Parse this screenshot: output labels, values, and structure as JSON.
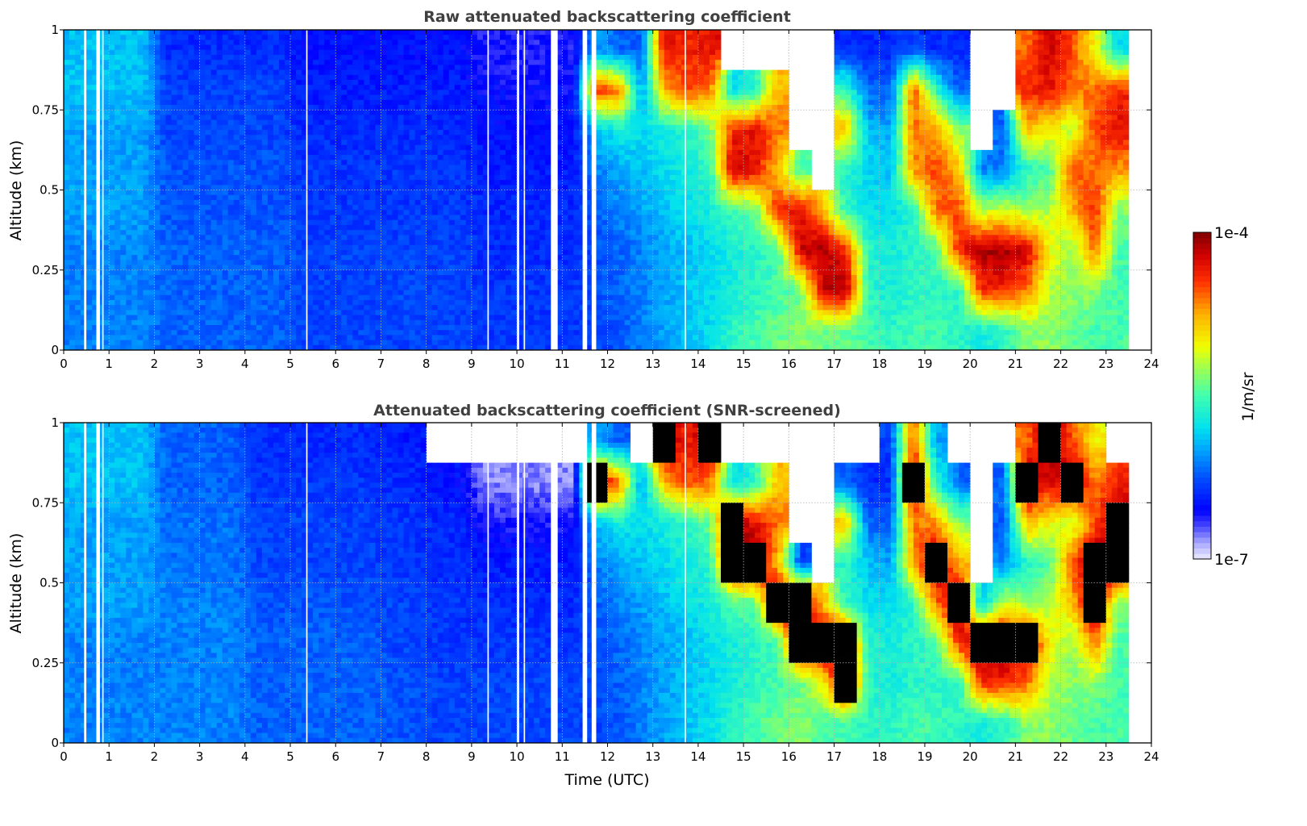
{
  "chart_data": [
    {
      "type": "heatmap",
      "title": "Raw attenuated backscattering coefficient",
      "xlabel": "",
      "ylabel": "Altitude (km)",
      "xlim": [
        0,
        24
      ],
      "ylim": [
        0,
        1
      ],
      "xticks": [
        "0",
        "1",
        "2",
        "3",
        "4",
        "5",
        "6",
        "7",
        "8",
        "9",
        "10",
        "11",
        "12",
        "13",
        "14",
        "15",
        "16",
        "17",
        "18",
        "19",
        "20",
        "21",
        "22",
        "23",
        "24"
      ],
      "yticks": [
        "0",
        "0.25",
        "0.5",
        "0.75",
        "1"
      ],
      "ytick_values": [
        0,
        0.25,
        0.5,
        0.75,
        1
      ],
      "grid": true,
      "time_step_hours": 0.5,
      "altitude_bins_km_top_to_bottom": [
        0.9375,
        0.8125,
        0.6875,
        0.5625,
        0.4375,
        0.3125,
        0.1875,
        0.0625
      ],
      "value_units": "log10(1/m/sr)",
      "z_columns_top_to_bottom": [
        [
          -5.9,
          -5.9,
          -6.0,
          -6.0,
          -6.0,
          -6.1,
          -6.1,
          -6.1
        ],
        [
          -5.9,
          -5.9,
          -6.0,
          -6.0,
          -6.0,
          -6.1,
          -6.1,
          -6.1
        ],
        [
          -5.9,
          -5.9,
          -6.0,
          -6.0,
          -6.0,
          -6.1,
          -6.1,
          -6.1
        ],
        [
          -5.9,
          -5.9,
          -6.0,
          -6.0,
          -6.0,
          -6.1,
          -6.1,
          -6.1
        ],
        [
          -6.4,
          -6.3,
          -6.3,
          -6.25,
          -6.25,
          -6.2,
          -6.2,
          -6.2
        ],
        [
          -6.4,
          -6.3,
          -6.3,
          -6.25,
          -6.25,
          -6.2,
          -6.2,
          -6.2
        ],
        [
          -6.4,
          -6.3,
          -6.3,
          -6.25,
          -6.25,
          -6.2,
          -6.2,
          -6.2
        ],
        [
          -6.4,
          -6.3,
          -6.3,
          -6.25,
          -6.25,
          -6.2,
          -6.2,
          -6.2
        ],
        [
          -6.4,
          -6.3,
          -6.3,
          -6.25,
          -6.25,
          -6.2,
          -6.2,
          -6.2
        ],
        [
          -6.4,
          -6.3,
          -6.3,
          -6.25,
          -6.25,
          -6.2,
          -6.2,
          -6.2
        ],
        [
          -6.5,
          -6.45,
          -6.4,
          -6.35,
          -6.35,
          -6.3,
          -6.3,
          -6.3
        ],
        [
          -6.5,
          -6.45,
          -6.4,
          -6.35,
          -6.35,
          -6.3,
          -6.3,
          -6.3
        ],
        [
          -6.5,
          -6.45,
          -6.4,
          -6.35,
          -6.35,
          -6.3,
          -6.3,
          -6.3
        ],
        [
          -6.5,
          -6.45,
          -6.4,
          -6.35,
          -6.35,
          -6.3,
          -6.3,
          -6.3
        ],
        [
          -6.5,
          -6.45,
          -6.4,
          -6.35,
          -6.35,
          -6.3,
          -6.3,
          -6.3
        ],
        [
          -6.5,
          -6.45,
          -6.4,
          -6.35,
          -6.35,
          -6.3,
          -6.3,
          -6.3
        ],
        [
          -6.5,
          -6.45,
          -6.4,
          -6.35,
          -6.35,
          -6.3,
          -6.3,
          -6.3
        ],
        [
          -6.5,
          -6.45,
          -6.4,
          -6.35,
          -6.35,
          -6.3,
          -6.3,
          -6.3
        ],
        [
          -6.6,
          -6.55,
          -6.5,
          -6.45,
          -6.4,
          -6.4,
          -6.35,
          -6.35
        ],
        [
          -6.6,
          -6.55,
          -6.5,
          -6.45,
          -6.4,
          -6.4,
          -6.35,
          -6.35
        ],
        [
          -6.6,
          -6.55,
          -6.5,
          -6.45,
          -6.4,
          -6.4,
          -6.35,
          -6.35
        ],
        [
          -6.6,
          -6.55,
          -6.5,
          -6.45,
          -6.4,
          -6.4,
          -6.35,
          -6.35
        ],
        [
          -6.6,
          -6.55,
          -6.5,
          -6.45,
          -6.4,
          -6.4,
          -6.35,
          -6.35
        ],
        [
          -6.0,
          -4.4,
          -5.9,
          -6.1,
          -6.2,
          -6.25,
          -6.25,
          -6.3
        ],
        [
          -6.2,
          -4.6,
          -5.7,
          -6.0,
          -6.1,
          -6.2,
          -6.2,
          -6.25
        ],
        [
          -6.2,
          -6.0,
          -5.8,
          -5.9,
          -6.0,
          -6.1,
          -6.1,
          -6.1
        ],
        [
          -4.3,
          -4.8,
          -5.7,
          -5.8,
          -5.9,
          -6.0,
          -6.0,
          -6.0
        ],
        [
          -4.4,
          -4.5,
          -5.6,
          -5.7,
          -5.8,
          -5.9,
          -5.9,
          -5.9
        ],
        [
          -4.3,
          -4.6,
          -5.4,
          -5.6,
          -5.7,
          -5.8,
          -5.8,
          -5.8
        ],
        [
          null,
          -5.8,
          -4.4,
          -4.2,
          -5.5,
          -5.7,
          -5.7,
          -5.6
        ],
        [
          null,
          -5.6,
          -4.3,
          -4.3,
          -5.4,
          -5.6,
          -5.6,
          -5.5
        ],
        [
          null,
          -4.8,
          -4.6,
          -4.8,
          -4.4,
          -5.5,
          -5.5,
          -5.4
        ],
        [
          null,
          null,
          null,
          -5.5,
          -4.3,
          -4.2,
          -5.4,
          -5.3
        ],
        [
          null,
          null,
          null,
          null,
          -4.8,
          -4.1,
          -4.2,
          -5.4
        ],
        [
          -6.4,
          -5.5,
          -4.8,
          -5.6,
          -5.6,
          -4.4,
          -4.1,
          -5.4
        ],
        [
          -6.4,
          -6.2,
          -5.9,
          -5.8,
          -5.8,
          -5.6,
          -5.6,
          -5.5
        ],
        [
          -6.4,
          -6.2,
          -6.0,
          -5.9,
          -5.8,
          -5.7,
          -5.7,
          -5.6
        ],
        [
          -6.3,
          -4.5,
          -4.6,
          -4.7,
          -5.6,
          -5.6,
          -5.6,
          -5.5
        ],
        [
          -6.4,
          -5.6,
          -4.7,
          -4.5,
          -4.6,
          -5.5,
          -5.6,
          -5.5
        ],
        [
          -6.4,
          -6.2,
          -5.3,
          -4.8,
          -4.5,
          -4.4,
          -5.6,
          -5.6
        ],
        [
          null,
          null,
          null,
          -6.1,
          -5.2,
          -4.1,
          -4.4,
          -5.7
        ],
        [
          null,
          null,
          -6.2,
          -6.1,
          -5.1,
          -4.1,
          -4.4,
          -5.6
        ],
        [
          -4.6,
          -4.4,
          -4.8,
          -5.6,
          -5.3,
          -4.2,
          -4.6,
          -5.3
        ],
        [
          -4.2,
          -4.3,
          -5.0,
          -5.5,
          -5.2,
          -5.0,
          -5.2,
          -5.3
        ],
        [
          -4.5,
          -4.6,
          -5.2,
          -4.5,
          -4.8,
          -5.3,
          -5.3,
          -5.4
        ],
        [
          -5.0,
          -4.6,
          -4.5,
          -4.6,
          -4.4,
          -4.6,
          -5.3,
          -5.5
        ],
        [
          -5.8,
          -4.4,
          -4.3,
          -4.7,
          -5.3,
          -5.5,
          -5.5,
          -5.5
        ],
        [
          null,
          null,
          null,
          null,
          null,
          null,
          null,
          null
        ]
      ],
      "missing_time_gaps_hours": [
        [
          0.45,
          0.5
        ],
        [
          0.72,
          0.8
        ],
        [
          0.85,
          0.88
        ],
        [
          5.35,
          5.38
        ],
        [
          9.35,
          9.38
        ],
        [
          10.0,
          10.05
        ],
        [
          10.15,
          10.18
        ],
        [
          10.75,
          10.9
        ],
        [
          11.45,
          11.55
        ],
        [
          11.65,
          11.75
        ],
        [
          13.7,
          13.73
        ]
      ]
    },
    {
      "type": "heatmap",
      "title": "Attenuated backscattering coefficient (SNR-screened)",
      "xlabel": "Time (UTC)",
      "ylabel": "Altitude (km)",
      "xlim": [
        0,
        24
      ],
      "ylim": [
        0,
        1
      ],
      "xticks": [
        "0",
        "1",
        "2",
        "3",
        "4",
        "5",
        "6",
        "7",
        "8",
        "9",
        "10",
        "11",
        "12",
        "13",
        "14",
        "15",
        "16",
        "17",
        "18",
        "19",
        "20",
        "21",
        "22",
        "23",
        "24"
      ],
      "yticks": [
        "0",
        "0.25",
        "0.5",
        "0.75",
        "1"
      ],
      "ytick_values": [
        0,
        0.25,
        0.5,
        0.75,
        1
      ],
      "grid": true,
      "time_step_hours": 0.5,
      "altitude_bins_km_top_to_bottom": [
        0.9375,
        0.8125,
        0.6875,
        0.5625,
        0.4375,
        0.3125,
        0.1875,
        0.0625
      ],
      "value_units": "log10(1/m/sr); values above -3.9 shown black (saturated)",
      "z_columns_top_to_bottom": [
        [
          -5.9,
          -5.9,
          -6.0,
          -6.0,
          -6.0,
          -6.1,
          -6.1,
          -6.1
        ],
        [
          -5.9,
          -5.9,
          -6.0,
          -6.0,
          -6.0,
          -6.1,
          -6.1,
          -6.1
        ],
        [
          -5.9,
          -5.9,
          -6.0,
          -6.0,
          -6.0,
          -6.1,
          -6.1,
          -6.1
        ],
        [
          -5.9,
          -5.9,
          -6.0,
          -6.0,
          -6.0,
          -6.1,
          -6.1,
          -6.1
        ],
        [
          -6.2,
          -6.2,
          -6.15,
          -6.15,
          -6.1,
          -6.1,
          -6.1,
          -6.1
        ],
        [
          -6.2,
          -6.2,
          -6.15,
          -6.15,
          -6.1,
          -6.1,
          -6.1,
          -6.1
        ],
        [
          -6.2,
          -6.2,
          -6.15,
          -6.15,
          -6.1,
          -6.1,
          -6.1,
          -6.1
        ],
        [
          -6.2,
          -6.2,
          -6.15,
          -6.15,
          -6.1,
          -6.1,
          -6.1,
          -6.1
        ],
        [
          -6.4,
          -6.35,
          -6.3,
          -6.3,
          -6.25,
          -6.2,
          -6.2,
          -6.2
        ],
        [
          -6.4,
          -6.35,
          -6.3,
          -6.3,
          -6.25,
          -6.2,
          -6.2,
          -6.2
        ],
        [
          -6.4,
          -6.35,
          -6.3,
          -6.3,
          -6.25,
          -6.2,
          -6.2,
          -6.2
        ],
        [
          -6.4,
          -6.35,
          -6.3,
          -6.3,
          -6.25,
          -6.2,
          -6.2,
          -6.2
        ],
        [
          -6.4,
          -6.35,
          -6.3,
          -6.3,
          -6.25,
          -6.2,
          -6.2,
          -6.2
        ],
        [
          -6.4,
          -6.35,
          -6.3,
          -6.3,
          -6.25,
          -6.2,
          -6.2,
          -6.2
        ],
        [
          -6.45,
          -6.4,
          -6.35,
          -6.35,
          -6.3,
          -6.3,
          -6.25,
          -6.25
        ],
        [
          -6.45,
          -6.4,
          -6.35,
          -6.35,
          -6.3,
          -6.3,
          -6.25,
          -6.25
        ],
        [
          null,
          -6.5,
          -6.4,
          -6.4,
          -6.35,
          -6.35,
          -6.3,
          -6.3
        ],
        [
          null,
          -6.5,
          -6.4,
          -6.4,
          -6.35,
          -6.35,
          -6.3,
          -6.3
        ],
        [
          null,
          -6.8,
          -6.6,
          -6.45,
          -6.4,
          -6.35,
          -6.3,
          -6.3
        ],
        [
          null,
          -6.8,
          -6.6,
          -6.45,
          -6.4,
          -6.35,
          -6.3,
          -6.3
        ],
        [
          null,
          -6.8,
          -6.6,
          -6.45,
          -6.4,
          -6.35,
          -6.3,
          -6.3
        ],
        [
          null,
          -6.8,
          -6.6,
          -6.45,
          -6.4,
          -6.35,
          -6.3,
          -6.3
        ],
        [
          null,
          -6.8,
          -6.6,
          -6.45,
          -6.4,
          -6.35,
          -6.3,
          -6.3
        ],
        [
          -6.0,
          -3.8,
          -5.9,
          -6.1,
          -6.2,
          -6.25,
          -6.25,
          -6.3
        ],
        [
          -6.2,
          -4.6,
          -5.7,
          -6.0,
          -6.1,
          -6.2,
          -6.2,
          -6.25
        ],
        [
          null,
          -6.0,
          -5.8,
          -5.9,
          -6.0,
          -6.1,
          -6.1,
          -6.1
        ],
        [
          -3.8,
          -4.8,
          -5.7,
          -5.8,
          -5.9,
          -6.0,
          -6.0,
          -6.0
        ],
        [
          -4.4,
          -4.5,
          -5.6,
          -5.7,
          -5.8,
          -5.9,
          -5.9,
          -5.9
        ],
        [
          -3.8,
          -4.6,
          -5.4,
          -5.6,
          -5.7,
          -5.8,
          -5.8,
          -5.8
        ],
        [
          null,
          -5.8,
          -3.8,
          -3.8,
          -5.5,
          -5.7,
          -5.7,
          -5.6
        ],
        [
          null,
          -5.6,
          -4.3,
          -3.8,
          -5.4,
          -5.6,
          -5.6,
          -5.5
        ],
        [
          null,
          -4.8,
          -4.6,
          -4.8,
          -3.8,
          -5.5,
          -5.5,
          -5.4
        ],
        [
          null,
          null,
          null,
          -6.3,
          -3.8,
          -3.8,
          -5.4,
          -5.3
        ],
        [
          null,
          null,
          null,
          null,
          -4.8,
          -3.8,
          -5.0,
          -5.5
        ],
        [
          null,
          -6.2,
          -4.8,
          -5.6,
          -5.6,
          -3.8,
          -3.8,
          -5.5
        ],
        [
          null,
          -6.4,
          -6.2,
          -5.9,
          -5.8,
          -5.6,
          -5.6,
          -5.6
        ],
        [
          -6.3,
          -6.4,
          -6.2,
          -6.0,
          -5.8,
          -5.7,
          -5.7,
          -5.6
        ],
        [
          -4.5,
          -3.8,
          -4.6,
          -4.7,
          -5.6,
          -5.6,
          -5.6,
          -5.5
        ],
        [
          -6.0,
          -5.6,
          -4.7,
          -3.8,
          -4.6,
          -5.5,
          -5.6,
          -5.5
        ],
        [
          null,
          -6.2,
          -5.3,
          -4.8,
          -3.8,
          -4.4,
          -5.6,
          -5.6
        ],
        [
          null,
          null,
          null,
          null,
          -5.9,
          -3.8,
          -4.4,
          -5.7
        ],
        [
          null,
          -6.2,
          -6.2,
          -6.1,
          -5.1,
          -3.8,
          -4.4,
          -5.6
        ],
        [
          -4.6,
          -3.8,
          -4.8,
          -5.6,
          -5.3,
          -3.8,
          -4.6,
          -5.3
        ],
        [
          -3.8,
          -4.3,
          -5.0,
          -5.5,
          -5.2,
          -5.0,
          -5.2,
          -5.3
        ],
        [
          -4.5,
          -3.8,
          -5.2,
          -4.5,
          -4.8,
          -5.3,
          -5.3,
          -5.4
        ],
        [
          -5.0,
          -4.6,
          -4.5,
          -3.8,
          -3.8,
          -4.6,
          -5.3,
          -5.5
        ],
        [
          null,
          -4.4,
          -3.8,
          -3.8,
          -5.3,
          -5.5,
          -5.5,
          -5.5
        ],
        [
          null,
          null,
          null,
          null,
          null,
          null,
          null,
          null
        ]
      ],
      "missing_time_gaps_hours": [
        [
          0.45,
          0.5
        ],
        [
          0.72,
          0.8
        ],
        [
          0.85,
          0.88
        ],
        [
          5.35,
          5.38
        ],
        [
          9.35,
          9.38
        ],
        [
          10.0,
          10.05
        ],
        [
          10.15,
          10.18
        ],
        [
          10.75,
          10.9
        ],
        [
          11.45,
          11.55
        ],
        [
          11.65,
          11.75
        ],
        [
          13.7,
          13.73
        ]
      ]
    }
  ],
  "colorbar": {
    "label": "1/m/sr",
    "max_label": "1e-4",
    "min_label": "1e-7",
    "log10_range": [
      -7,
      -4
    ],
    "scale": "log",
    "colormap": "jet with lavender low end",
    "saturated_color": "#000000"
  }
}
